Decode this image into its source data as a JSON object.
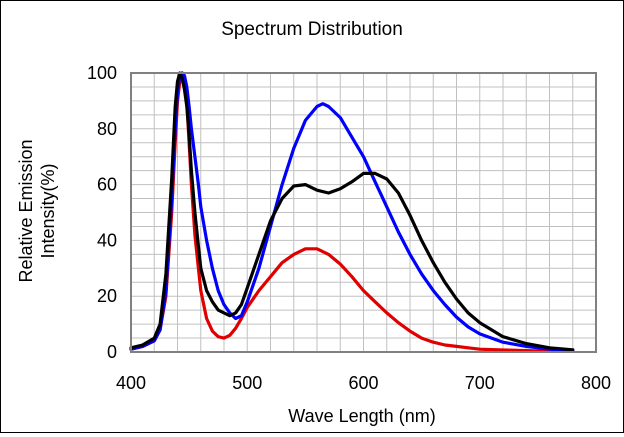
{
  "chart_data": {
    "type": "line",
    "title": "Spectrum Distribution",
    "xlabel": "Wave Length (nm)",
    "ylabel_lines": [
      "Relative Emission",
      "Intensity(%)"
    ],
    "xlim": [
      400,
      800
    ],
    "ylim": [
      0,
      100
    ],
    "x_ticks": [
      400,
      500,
      600,
      700,
      800
    ],
    "y_ticks": [
      0,
      20,
      40,
      60,
      80,
      100
    ],
    "x_minor_step": 20,
    "y_minor_step": 5,
    "grid": true,
    "legend": "none",
    "colors": {
      "red": "#e00000",
      "blue": "#0000ff",
      "black": "#000000",
      "grid": "#c0c0c0",
      "frame": "#808080"
    },
    "series": [
      {
        "color": "#e00000",
        "x": [
          400,
          410,
          420,
          425,
          430,
          435,
          438,
          440,
          442,
          444,
          446,
          448,
          450,
          452,
          455,
          458,
          460,
          465,
          470,
          475,
          480,
          485,
          490,
          495,
          500,
          510,
          520,
          530,
          540,
          550,
          560,
          570,
          580,
          590,
          600,
          610,
          620,
          630,
          640,
          650,
          660,
          670,
          680,
          690,
          700,
          720,
          740,
          760,
          780
        ],
        "y": [
          1,
          2,
          4,
          8,
          20,
          50,
          75,
          90,
          97,
          100,
          98,
          90,
          75,
          60,
          42,
          30,
          22,
          12,
          7.5,
          5.5,
          5,
          6,
          8.5,
          12,
          16,
          22,
          27,
          32,
          35,
          37,
          37,
          35,
          31.5,
          27,
          22,
          18,
          14,
          10.5,
          7.5,
          5,
          3.5,
          2.5,
          2,
          1.5,
          1,
          0.7,
          0.5,
          0.3,
          0.2
        ]
      },
      {
        "color": "#0000ff",
        "x": [
          400,
          410,
          420,
          425,
          430,
          435,
          438,
          440,
          442,
          444,
          446,
          448,
          450,
          452,
          455,
          458,
          460,
          465,
          470,
          475,
          480,
          485,
          490,
          495,
          500,
          510,
          520,
          530,
          540,
          550,
          560,
          565,
          570,
          580,
          590,
          600,
          610,
          620,
          630,
          640,
          650,
          660,
          670,
          680,
          690,
          700,
          720,
          740,
          760,
          780
        ],
        "y": [
          1,
          2,
          4,
          8,
          22,
          55,
          80,
          93,
          99,
          100,
          99,
          95,
          88,
          80,
          70,
          60,
          52,
          40,
          30,
          22,
          17,
          14,
          12,
          13,
          18,
          30,
          45,
          60,
          73,
          83,
          88,
          89,
          88,
          84,
          77,
          70,
          61,
          52,
          43,
          35,
          28,
          22,
          17,
          12.5,
          9,
          6.5,
          3.5,
          2,
          1,
          0.5
        ]
      },
      {
        "color": "#000000",
        "x": [
          400,
          410,
          420,
          425,
          430,
          435,
          438,
          440,
          442,
          444,
          446,
          448,
          450,
          452,
          455,
          458,
          460,
          465,
          470,
          475,
          480,
          485,
          490,
          495,
          500,
          510,
          520,
          530,
          540,
          550,
          560,
          570,
          580,
          590,
          600,
          610,
          620,
          630,
          640,
          650,
          660,
          670,
          680,
          690,
          700,
          720,
          740,
          760,
          780
        ],
        "y": [
          1.5,
          2.5,
          5,
          10,
          28,
          62,
          88,
          97,
          100,
          98,
          94,
          88,
          78,
          65,
          50,
          38,
          30,
          22,
          18,
          15,
          14,
          13,
          14,
          17,
          23,
          35,
          47,
          55,
          59.5,
          60,
          58,
          57,
          58.5,
          61,
          64,
          64,
          62,
          57,
          49,
          40,
          32,
          25,
          19,
          14,
          10.5,
          5.5,
          3,
          1.5,
          0.8
        ]
      }
    ]
  }
}
